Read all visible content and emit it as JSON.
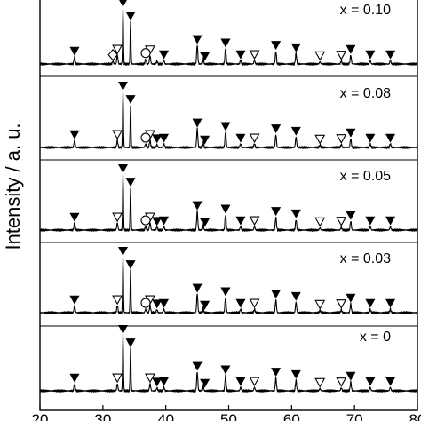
{
  "chart_data": {
    "type": "line",
    "title": "",
    "ylabel": "Intensity / a. u.",
    "xlabel": "",
    "xlim": [
      20,
      80
    ],
    "x_ticks": [
      20,
      30,
      40,
      50,
      60,
      70,
      80
    ],
    "x_tick_labels": [
      "20",
      "30",
      "40",
      "50",
      "60",
      "70",
      "80"
    ],
    "series": [
      {
        "name": "x = 0.10",
        "peaks": [
          [
            25.5,
            0.12
          ],
          [
            31.6,
            0.05
          ],
          [
            32.3,
            0.15
          ],
          [
            33.2,
            0.95
          ],
          [
            34.4,
            0.72
          ],
          [
            36.8,
            0.08
          ],
          [
            37.5,
            0.14
          ],
          [
            38.6,
            0.05
          ],
          [
            39.7,
            0.06
          ],
          [
            45.0,
            0.32
          ],
          [
            45.9,
            0.14
          ],
          [
            49.5,
            0.26
          ],
          [
            51.9,
            0.06
          ],
          [
            54.1,
            0.06
          ],
          [
            57.5,
            0.22
          ],
          [
            60.7,
            0.18
          ],
          [
            64.5,
            0.04
          ],
          [
            67.9,
            0.05
          ],
          [
            69.4,
            0.15
          ],
          [
            72.5,
            0.06
          ],
          [
            75.7,
            0.06
          ]
        ],
        "markers": {
          "filled_triangle": [
            25.5,
            33.2,
            34.4,
            39.7,
            45.0,
            46.2,
            49.5,
            51.9,
            57.5,
            60.7,
            69.4,
            72.5,
            75.7
          ],
          "open_triangle": [
            32.3,
            37.5,
            54.1,
            64.5,
            67.9
          ],
          "circle": [
            36.8
          ],
          "diamond": [
            31.6
          ]
        }
      },
      {
        "name": "x = 0.08",
        "peaks": [
          [
            25.5,
            0.12
          ],
          [
            32.3,
            0.12
          ],
          [
            33.2,
            0.95
          ],
          [
            34.4,
            0.72
          ],
          [
            36.8,
            0.06
          ],
          [
            37.5,
            0.12
          ],
          [
            38.6,
            0.05
          ],
          [
            39.7,
            0.06
          ],
          [
            45.0,
            0.32
          ],
          [
            45.9,
            0.14
          ],
          [
            49.5,
            0.26
          ],
          [
            51.9,
            0.06
          ],
          [
            54.1,
            0.06
          ],
          [
            57.5,
            0.22
          ],
          [
            60.7,
            0.18
          ],
          [
            64.5,
            0.04
          ],
          [
            67.9,
            0.05
          ],
          [
            69.4,
            0.15
          ],
          [
            72.5,
            0.06
          ],
          [
            75.7,
            0.06
          ]
        ],
        "markers": {
          "filled_triangle": [
            25.5,
            33.2,
            34.4,
            38.6,
            39.7,
            45.0,
            46.2,
            49.5,
            51.9,
            57.5,
            60.7,
            69.4,
            72.5,
            75.7
          ],
          "open_triangle": [
            32.3,
            37.5,
            54.1,
            64.5,
            67.9
          ],
          "circle": [
            36.8
          ],
          "diamond": []
        }
      },
      {
        "name": "x = 0.05",
        "peaks": [
          [
            25.5,
            0.12
          ],
          [
            32.3,
            0.12
          ],
          [
            33.2,
            0.95
          ],
          [
            34.4,
            0.72
          ],
          [
            36.8,
            0.06
          ],
          [
            37.5,
            0.12
          ],
          [
            38.6,
            0.05
          ],
          [
            39.7,
            0.06
          ],
          [
            45.0,
            0.32
          ],
          [
            45.9,
            0.14
          ],
          [
            49.5,
            0.26
          ],
          [
            51.9,
            0.06
          ],
          [
            54.1,
            0.06
          ],
          [
            57.5,
            0.22
          ],
          [
            60.7,
            0.18
          ],
          [
            64.5,
            0.04
          ],
          [
            67.9,
            0.05
          ],
          [
            69.4,
            0.15
          ],
          [
            72.5,
            0.06
          ],
          [
            75.7,
            0.06
          ]
        ],
        "markers": {
          "filled_triangle": [
            25.5,
            33.2,
            34.4,
            38.6,
            39.7,
            45.0,
            46.2,
            49.5,
            51.9,
            57.5,
            60.7,
            69.4,
            72.5,
            75.7
          ],
          "open_triangle": [
            32.3,
            37.5,
            54.1,
            64.5,
            67.9
          ],
          "circle": [
            36.8
          ],
          "diamond": []
        }
      },
      {
        "name": "x = 0.03",
        "peaks": [
          [
            25.5,
            0.12
          ],
          [
            32.3,
            0.12
          ],
          [
            33.2,
            0.95
          ],
          [
            34.4,
            0.72
          ],
          [
            36.8,
            0.06
          ],
          [
            37.5,
            0.12
          ],
          [
            38.6,
            0.05
          ],
          [
            39.7,
            0.06
          ],
          [
            45.0,
            0.32
          ],
          [
            45.9,
            0.14
          ],
          [
            49.5,
            0.26
          ],
          [
            51.9,
            0.06
          ],
          [
            54.1,
            0.06
          ],
          [
            57.5,
            0.22
          ],
          [
            60.7,
            0.18
          ],
          [
            64.5,
            0.04
          ],
          [
            67.9,
            0.05
          ],
          [
            69.4,
            0.15
          ],
          [
            72.5,
            0.06
          ],
          [
            75.7,
            0.06
          ]
        ],
        "markers": {
          "filled_triangle": [
            25.5,
            33.2,
            34.4,
            38.6,
            39.7,
            45.0,
            46.2,
            49.5,
            51.9,
            57.5,
            60.7,
            69.4,
            72.5,
            75.7
          ],
          "open_triangle": [
            32.3,
            37.5,
            54.1,
            64.5,
            67.9
          ],
          "circle": [
            36.8
          ],
          "diamond": []
        }
      },
      {
        "name": "x = 0",
        "peaks": [
          [
            25.5,
            0.12
          ],
          [
            32.3,
            0.12
          ],
          [
            33.2,
            0.95
          ],
          [
            34.4,
            0.72
          ],
          [
            37.5,
            0.12
          ],
          [
            38.6,
            0.05
          ],
          [
            39.7,
            0.06
          ],
          [
            45.0,
            0.32
          ],
          [
            45.9,
            0.14
          ],
          [
            49.5,
            0.26
          ],
          [
            51.9,
            0.06
          ],
          [
            54.1,
            0.06
          ],
          [
            57.5,
            0.22
          ],
          [
            60.7,
            0.18
          ],
          [
            64.5,
            0.04
          ],
          [
            67.9,
            0.05
          ],
          [
            69.4,
            0.15
          ],
          [
            72.5,
            0.06
          ],
          [
            75.7,
            0.06
          ]
        ],
        "markers": {
          "filled_triangle": [
            25.5,
            33.2,
            34.4,
            38.6,
            39.7,
            45.0,
            46.2,
            49.5,
            51.9,
            57.5,
            60.7,
            69.4,
            72.5,
            75.7
          ],
          "open_triangle": [
            32.3,
            37.5,
            54.1,
            64.5,
            67.9
          ],
          "circle": [],
          "diamond": []
        }
      }
    ],
    "grid": false,
    "legend": "none"
  }
}
